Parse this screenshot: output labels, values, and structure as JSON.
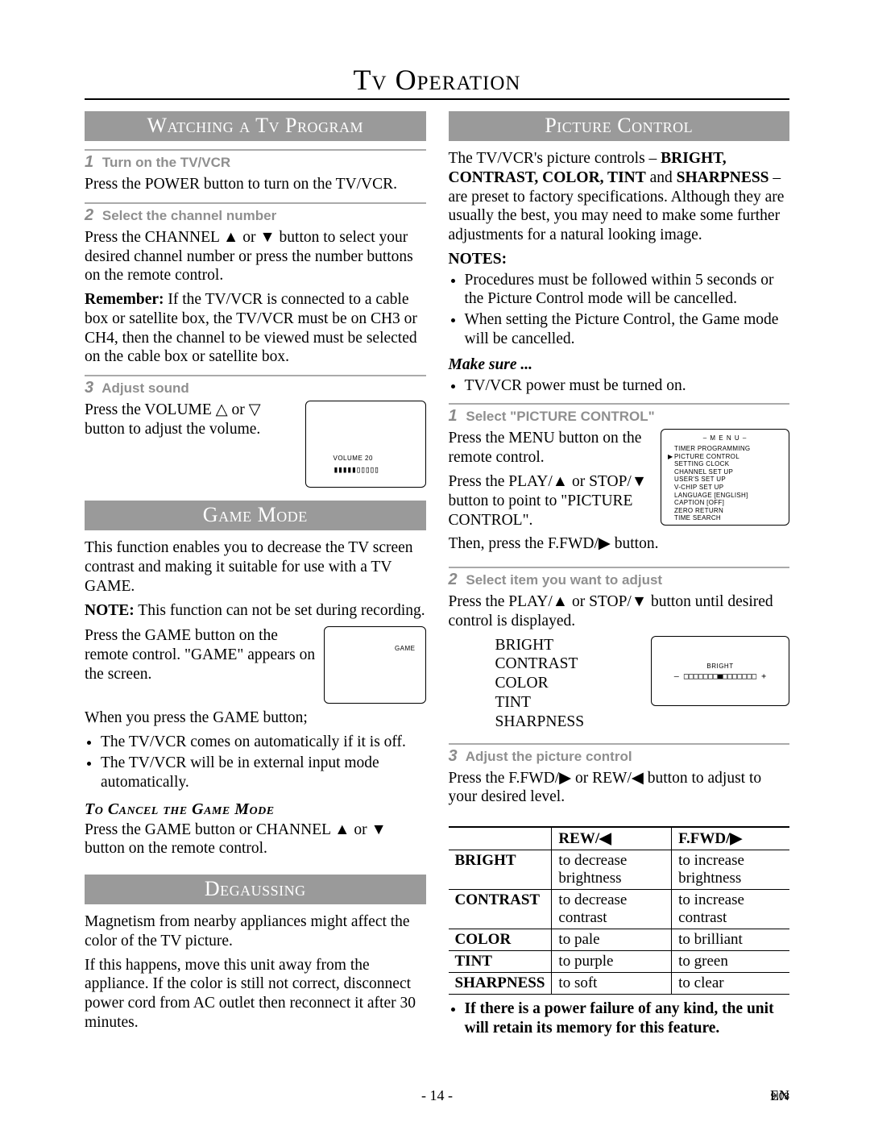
{
  "title": "Tv Operation",
  "left": {
    "section1": {
      "band": "Watching a Tv Program",
      "s1_num": "1",
      "s1_title": "Turn on the TV/VCR",
      "s1_body": "Press the POWER button to turn on the TV/VCR.",
      "s2_num": "2",
      "s2_title": "Select the channel number",
      "s2_body": "Press the CHANNEL ▲ or ▼ button to select your desired channel number or press the number buttons on the remote control.",
      "s2_remember": "Remember: If the TV/VCR is connected to a cable box or satellite box, the TV/VCR must be on CH3 or CH4, then the channel to be viewed must be selected on the cable box or satellite box.",
      "s3_num": "3",
      "s3_title": "Adjust sound",
      "s3_body": "Press the VOLUME △ or ▽ button to adjust the volume.",
      "vol_label": "VOLUME    20"
    },
    "section2": {
      "band": "Game Mode",
      "p1": "This function enables you to decrease the TV screen contrast and making it suitable for use with a TV GAME.",
      "note": "NOTE: This function can not be set during recording.",
      "p2": "Press the GAME button on the remote control. \"GAME\" appears on the screen.",
      "game_label": "GAME",
      "p3": "When you press the GAME button;",
      "b1": "The TV/VCR comes on automatically if it is off.",
      "b2": "The TV/VCR will be in external input mode automatically.",
      "cancel_head": "To Cancel the Game Mode",
      "cancel_body": "Press the GAME button or CHANNEL ▲ or ▼ button on the remote control."
    },
    "section3": {
      "band": "Degaussing",
      "p1": "Magnetism from nearby appliances might affect the color of the TV picture.",
      "p2": "If this happens, move this unit away from the appliance. If the color is still not correct, disconnect power cord from AC outlet then reconnect it after 30 minutes."
    }
  },
  "right": {
    "band": "Picture Control",
    "intro": "The TV/VCR's picture controls – BRIGHT, CONTRAST, COLOR, TINT and SHARPNESS – are preset to factory specifications. Although they are usually the best, you may need to make some further adjustments for a natural looking image.",
    "notes_head": "NOTES:",
    "n1": "Procedures must be followed within 5 seconds or the Picture Control mode will be cancelled.",
    "n2": "When setting the Picture Control, the Game mode will be cancelled.",
    "makesure_head": "Make sure ...",
    "ms1": "TV/VCR power must be turned on.",
    "s1_num": "1",
    "s1_title": "Select \"PICTURE CONTROL\"",
    "s1_p1": "Press the MENU button on the remote control.",
    "s1_p2": "Press the PLAY/▲ or STOP/▼ button to point to \"PICTURE CONTROL\".",
    "s1_p3": "Then, press the F.FWD/▶ button.",
    "menu": {
      "title": "– M E N U –",
      "items": [
        "TIMER PROGRAMMING",
        "PICTURE CONTROL",
        "SETTING CLOCK",
        "CHANNEL SET UP",
        "USER'S SET UP",
        "V-CHIP SET UP",
        "LANGUAGE  [ENGLISH]",
        "CAPTION  [OFF]",
        "ZERO RETURN",
        "TIME SEARCH"
      ],
      "pointer_index": 1
    },
    "s2_num": "2",
    "s2_title": "Select item you want to adjust",
    "s2_p1": "Press the PLAY/▲ or STOP/▼ button until desired control is displayed.",
    "s2_list": [
      "BRIGHT",
      "CONTRAST",
      "COLOR",
      "TINT",
      "SHARPNESS"
    ],
    "bright_screen": {
      "label": "BRIGHT",
      "bar": "– □□□□□□□■□□□□□□□ +"
    },
    "s3_num": "3",
    "s3_title": "Adjust the picture control",
    "s3_p1": "Press the F.FWD/▶ or REW/◀ button to adjust to your desired level.",
    "table": {
      "head": [
        "",
        "REW/◀",
        "F.FWD/▶"
      ],
      "rows": [
        [
          "BRIGHT",
          "to decrease brightness",
          "to increase brightness"
        ],
        [
          "CONTRAST",
          "to decrease contrast",
          "to increase contrast"
        ],
        [
          "COLOR",
          "to pale",
          "to brilliant"
        ],
        [
          "TINT",
          "to purple",
          "to green"
        ],
        [
          "SHARPNESS",
          "to soft",
          "to clear"
        ]
      ]
    },
    "tb_note": "If there is a power failure of any kind, the unit will retain its memory for this feature."
  },
  "footer": {
    "page": "- 14 -",
    "lang": "EN",
    "code": "9I03"
  }
}
